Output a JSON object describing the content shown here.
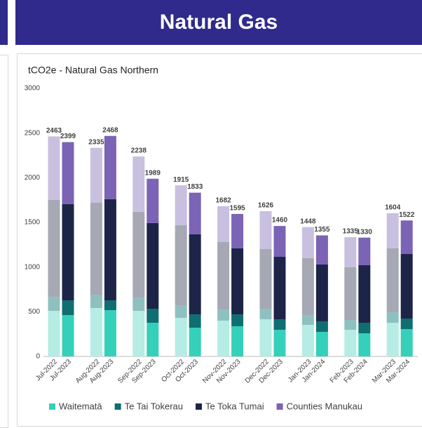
{
  "header": {
    "title": "Natural Gas"
  },
  "chart_data": {
    "type": "stacked_bar",
    "title": "tCO2e - Natural Gas Northern",
    "categories": [
      "Jul-2022",
      "Jul-2023",
      "Aug-2022",
      "Aug-2023",
      "Sep-2022",
      "Sep-2023",
      "Oct-2022",
      "Oct-2023",
      "Nov-2022",
      "Nov-2023",
      "Dec-2022",
      "Dec-2023",
      "Jan-2023",
      "Jan-2024",
      "Feb-2023",
      "Feb-2024",
      "Mar-2023",
      "Mar-2024"
    ],
    "series": [
      {
        "name": "Waitematā",
        "color": "#35d0b9",
        "light_color": "#b5ece3",
        "values": [
          510,
          463,
          542,
          518,
          510,
          377,
          432,
          322,
          400,
          338,
          416,
          298,
          353,
          275,
          298,
          259,
          377,
          306
        ]
      },
      {
        "name": "Te Tai Tokerau",
        "color": "#0f6e72",
        "light_color": "#8fc0c0",
        "values": [
          158,
          165,
          149,
          110,
          150,
          157,
          141,
          149,
          126,
          133,
          118,
          118,
          110,
          118,
          110,
          118,
          118,
          118
        ]
      },
      {
        "name": "Te Toka Tumai",
        "color": "#1c2548",
        "light_color": "#a6a8b4",
        "values": [
          1084,
          1077,
          1029,
          1132,
          958,
          959,
          896,
          896,
          754,
          739,
          668,
          699,
          637,
          636,
          592,
          644,
          715,
          723
        ]
      },
      {
        "name": "Counties Manukau",
        "color": "#7b63b5",
        "light_color": "#c9c0e0",
        "values": [
          711,
          694,
          615,
          708,
          620,
          496,
          446,
          466,
          402,
          385,
          424,
          345,
          348,
          326,
          335,
          309,
          394,
          375
        ]
      }
    ],
    "totals": [
      2463,
      2399,
      2335,
      2468,
      2238,
      1989,
      1915,
      1833,
      1682,
      1595,
      1626,
      1460,
      1448,
      1355,
      1335,
      1330,
      1604,
      1522
    ],
    "ylim": [
      0,
      3000
    ],
    "yticks": [
      0,
      500,
      1000,
      1500,
      2000,
      2500,
      3000
    ],
    "legend": "bottom"
  }
}
